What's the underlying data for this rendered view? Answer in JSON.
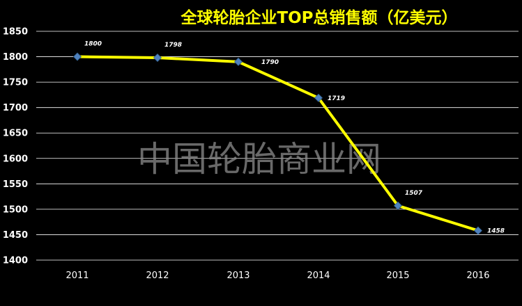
{
  "chart_data": {
    "type": "line",
    "title": "全球轮胎企业TOP总销售额（亿美元）",
    "watermark": "中国轮胎商业网",
    "categories": [
      "2011",
      "2012",
      "2013",
      "2014",
      "2015",
      "2016"
    ],
    "series": [
      {
        "values": [
          1800,
          1798,
          1790,
          1719,
          1507,
          1458
        ],
        "color": "#ffff00"
      }
    ],
    "data_labels": [
      "1800",
      "1798",
      "1790",
      "1719",
      "1507",
      "1458"
    ],
    "ylim": [
      1400,
      1850
    ],
    "yticks": [
      "1400",
      "1450",
      "1500",
      "1550",
      "1600",
      "1650",
      "1700",
      "1750",
      "1800",
      "1850"
    ],
    "grid": true,
    "colors": {
      "background": "#000000",
      "line": "#ffff00",
      "marker": "#4f81bd",
      "grid": "#ffffff",
      "text": "#ffffff",
      "title": "#ffff00",
      "watermark": "#8c8c8c"
    }
  }
}
